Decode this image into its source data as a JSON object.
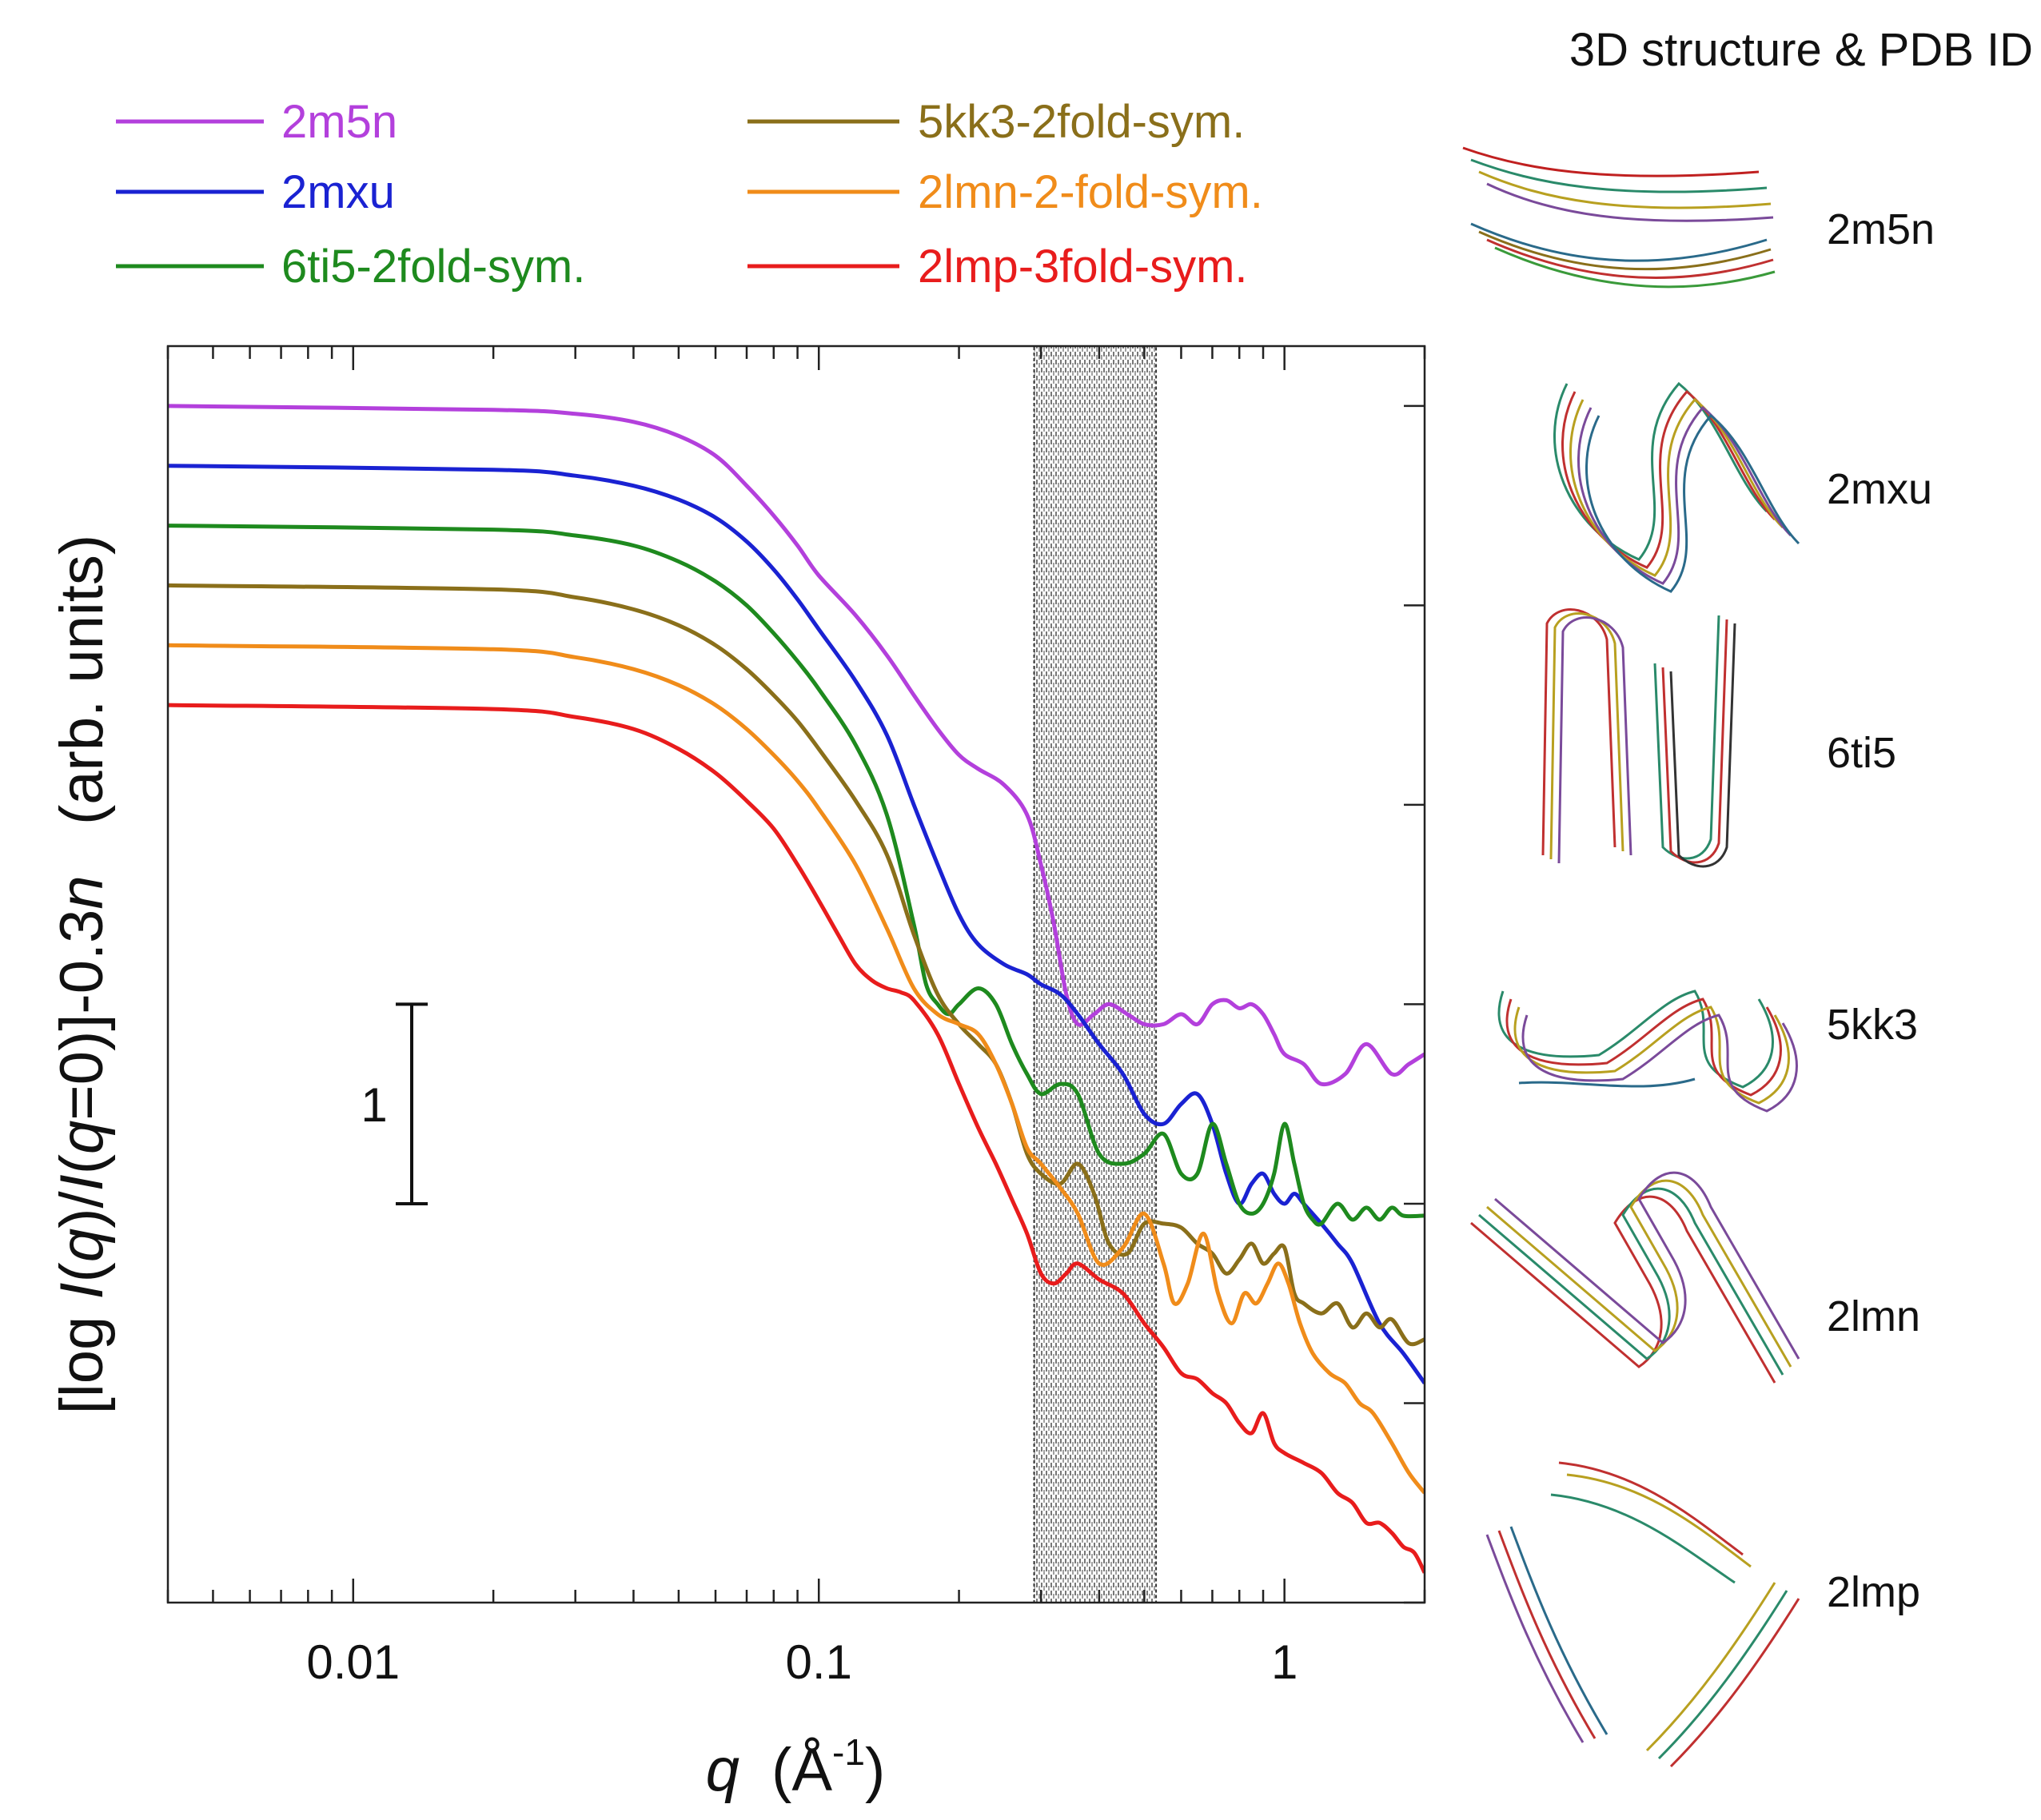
{
  "chart_data": {
    "type": "line",
    "xscale": "log",
    "xlim": [
      0.004,
      2.0
    ],
    "ylim": [
      -6.0,
      0.3
    ],
    "xlabel": {
      "main": "q",
      "unit": "(Å",
      "exp": "-1",
      "close": ")"
    },
    "ylabel": {
      "p1": "[log ",
      "p2": "I",
      "p3": "(",
      "p4": "q",
      "p5": ")/",
      "p6": "I",
      "p7": "(",
      "p8": "q",
      "p9": "=0)]-0.3",
      "p10": "n",
      "p11": "   (arb. units)"
    },
    "xticks": [
      {
        "value": 0.01,
        "label": "0.01"
      },
      {
        "value": 0.1,
        "label": "0.1"
      },
      {
        "value": 1,
        "label": "1"
      }
    ],
    "scale_bar": {
      "label": "1",
      "length": 1
    },
    "shaded_region": [
      0.29,
      0.53
    ],
    "series": [
      {
        "name": "2m5n",
        "color": "#b340dc",
        "x": [
          0.004,
          0.02,
          0.03,
          0.04,
          0.05,
          0.06,
          0.07,
          0.08,
          0.09,
          0.1,
          0.12,
          0.14,
          0.16,
          0.18,
          0.2,
          0.22,
          0.25,
          0.28,
          0.3,
          0.32,
          0.34,
          0.36,
          0.39,
          0.42,
          0.46,
          0.5,
          0.55,
          0.6,
          0.65,
          0.7,
          0.75,
          0.8,
          0.85,
          0.9,
          0.95,
          1.0,
          1.1,
          1.2,
          1.35,
          1.5,
          1.7,
          1.85,
          2.0
        ],
        "y": [
          0.0,
          -0.02,
          -0.04,
          -0.08,
          -0.15,
          -0.25,
          -0.4,
          -0.55,
          -0.7,
          -0.85,
          -1.05,
          -1.25,
          -1.45,
          -1.62,
          -1.75,
          -1.82,
          -1.9,
          -2.05,
          -2.3,
          -2.6,
          -2.95,
          -3.1,
          -3.05,
          -3.0,
          -3.05,
          -3.1,
          -3.1,
          -3.05,
          -3.1,
          -3.0,
          -2.98,
          -3.02,
          -3.0,
          -3.05,
          -3.15,
          -3.25,
          -3.3,
          -3.4,
          -3.35,
          -3.2,
          -3.35,
          -3.3,
          -3.25
        ]
      },
      {
        "name": "2mxu",
        "color": "#1a22d2",
        "x": [
          0.004,
          0.02,
          0.03,
          0.04,
          0.05,
          0.06,
          0.07,
          0.08,
          0.09,
          0.1,
          0.12,
          0.14,
          0.16,
          0.18,
          0.2,
          0.22,
          0.25,
          0.28,
          0.3,
          0.33,
          0.36,
          0.4,
          0.45,
          0.5,
          0.55,
          0.6,
          0.65,
          0.7,
          0.75,
          0.8,
          0.85,
          0.9,
          0.95,
          1.0,
          1.05,
          1.1,
          1.2,
          1.3,
          1.4,
          1.6,
          1.8,
          2.0
        ],
        "y": [
          -0.3,
          -0.32,
          -0.35,
          -0.4,
          -0.47,
          -0.56,
          -0.68,
          -0.82,
          -0.97,
          -1.12,
          -1.38,
          -1.65,
          -2.0,
          -2.3,
          -2.55,
          -2.7,
          -2.8,
          -2.85,
          -2.9,
          -2.95,
          -3.05,
          -3.2,
          -3.35,
          -3.55,
          -3.6,
          -3.5,
          -3.45,
          -3.6,
          -3.85,
          -4.0,
          -3.9,
          -3.85,
          -3.95,
          -4.0,
          -3.95,
          -4.0,
          -4.1,
          -4.2,
          -4.3,
          -4.6,
          -4.75,
          -4.9
        ]
      },
      {
        "name": "6ti5-2fold-sym.",
        "color": "#1e8a1e",
        "x": [
          0.004,
          0.02,
          0.03,
          0.04,
          0.05,
          0.06,
          0.07,
          0.08,
          0.09,
          0.1,
          0.12,
          0.14,
          0.16,
          0.17,
          0.18,
          0.19,
          0.2,
          0.22,
          0.24,
          0.26,
          0.28,
          0.3,
          0.33,
          0.36,
          0.4,
          0.45,
          0.5,
          0.55,
          0.6,
          0.65,
          0.7,
          0.75,
          0.8,
          0.85,
          0.9,
          0.95,
          1.0,
          1.05,
          1.1,
          1.15,
          1.2,
          1.3,
          1.4,
          1.5,
          1.6,
          1.7,
          1.8,
          2.0
        ],
        "y": [
          -0.6,
          -0.62,
          -0.65,
          -0.7,
          -0.78,
          -0.88,
          -1.0,
          -1.14,
          -1.28,
          -1.42,
          -1.7,
          -2.05,
          -2.6,
          -2.9,
          -3.0,
          -3.05,
          -3.0,
          -2.92,
          -3.0,
          -3.2,
          -3.35,
          -3.45,
          -3.4,
          -3.45,
          -3.75,
          -3.8,
          -3.75,
          -3.65,
          -3.85,
          -3.85,
          -3.6,
          -3.8,
          -4.0,
          -4.05,
          -4.0,
          -3.85,
          -3.6,
          -3.8,
          -4.0,
          -4.08,
          -4.1,
          -4.0,
          -4.08,
          -4.02,
          -4.08,
          -4.02,
          -4.06,
          -4.06
        ]
      },
      {
        "name": "5kk3-2fold-sym.",
        "color": "#8a6f1a",
        "x": [
          0.004,
          0.02,
          0.03,
          0.04,
          0.05,
          0.06,
          0.07,
          0.08,
          0.09,
          0.1,
          0.12,
          0.14,
          0.16,
          0.18,
          0.2,
          0.22,
          0.24,
          0.26,
          0.28,
          0.3,
          0.33,
          0.36,
          0.39,
          0.42,
          0.46,
          0.5,
          0.55,
          0.6,
          0.65,
          0.7,
          0.75,
          0.8,
          0.85,
          0.9,
          0.95,
          1.0,
          1.05,
          1.1,
          1.2,
          1.3,
          1.4,
          1.5,
          1.6,
          1.7,
          1.85,
          2.0
        ],
        "y": [
          -0.9,
          -0.92,
          -0.96,
          -1.02,
          -1.1,
          -1.2,
          -1.32,
          -1.45,
          -1.58,
          -1.72,
          -1.98,
          -2.25,
          -2.65,
          -2.95,
          -3.1,
          -3.2,
          -3.3,
          -3.5,
          -3.75,
          -3.85,
          -3.9,
          -3.8,
          -3.95,
          -4.2,
          -4.25,
          -4.1,
          -4.1,
          -4.12,
          -4.2,
          -4.25,
          -4.35,
          -4.28,
          -4.2,
          -4.3,
          -4.25,
          -4.22,
          -4.45,
          -4.5,
          -4.55,
          -4.5,
          -4.62,
          -4.55,
          -4.62,
          -4.58,
          -4.7,
          -4.68
        ]
      },
      {
        "name": "2lmn-2-fold-sym.",
        "color": "#f08c1a",
        "x": [
          0.004,
          0.02,
          0.03,
          0.04,
          0.05,
          0.06,
          0.07,
          0.08,
          0.09,
          0.1,
          0.12,
          0.14,
          0.16,
          0.18,
          0.2,
          0.22,
          0.24,
          0.26,
          0.28,
          0.3,
          0.33,
          0.36,
          0.4,
          0.45,
          0.5,
          0.55,
          0.58,
          0.62,
          0.67,
          0.72,
          0.77,
          0.82,
          0.87,
          0.92,
          0.97,
          1.02,
          1.08,
          1.15,
          1.25,
          1.35,
          1.45,
          1.55,
          1.7,
          1.85,
          2.0
        ],
        "y": [
          -1.2,
          -1.22,
          -1.26,
          -1.32,
          -1.4,
          -1.5,
          -1.62,
          -1.75,
          -1.88,
          -2.02,
          -2.3,
          -2.62,
          -2.92,
          -3.05,
          -3.1,
          -3.15,
          -3.3,
          -3.5,
          -3.72,
          -3.8,
          -3.92,
          -4.05,
          -4.3,
          -4.22,
          -4.05,
          -4.3,
          -4.5,
          -4.4,
          -4.15,
          -4.45,
          -4.6,
          -4.45,
          -4.5,
          -4.4,
          -4.3,
          -4.4,
          -4.6,
          -4.75,
          -4.85,
          -4.9,
          -5.0,
          -5.05,
          -5.2,
          -5.35,
          -5.45
        ]
      },
      {
        "name": "2lmp-3fold-sym.",
        "color": "#e81c1c",
        "x": [
          0.004,
          0.02,
          0.03,
          0.04,
          0.05,
          0.06,
          0.07,
          0.08,
          0.09,
          0.1,
          0.11,
          0.12,
          0.13,
          0.14,
          0.15,
          0.16,
          0.18,
          0.2,
          0.22,
          0.24,
          0.26,
          0.28,
          0.3,
          0.32,
          0.34,
          0.36,
          0.4,
          0.45,
          0.5,
          0.55,
          0.6,
          0.65,
          0.7,
          0.75,
          0.8,
          0.85,
          0.9,
          0.95,
          1.0,
          1.1,
          1.2,
          1.3,
          1.4,
          1.5,
          1.6,
          1.7,
          1.8,
          1.9,
          2.0
        ],
        "y": [
          -1.5,
          -1.52,
          -1.56,
          -1.62,
          -1.72,
          -1.84,
          -1.98,
          -2.12,
          -2.3,
          -2.48,
          -2.65,
          -2.8,
          -2.88,
          -2.92,
          -2.94,
          -2.98,
          -3.15,
          -3.4,
          -3.62,
          -3.8,
          -3.98,
          -4.15,
          -4.35,
          -4.4,
          -4.35,
          -4.3,
          -4.38,
          -4.45,
          -4.6,
          -4.72,
          -4.85,
          -4.88,
          -4.95,
          -5.0,
          -5.1,
          -5.15,
          -5.05,
          -5.2,
          -5.25,
          -5.3,
          -5.35,
          -5.45,
          -5.5,
          -5.6,
          -5.6,
          -5.65,
          -5.72,
          -5.75,
          -5.85
        ]
      }
    ]
  },
  "structures": {
    "title": "3D structure & PDB ID",
    "items": [
      "2m5n",
      "2mxu",
      "6ti5",
      "5kk3",
      "2lmn",
      "2lmp"
    ]
  }
}
